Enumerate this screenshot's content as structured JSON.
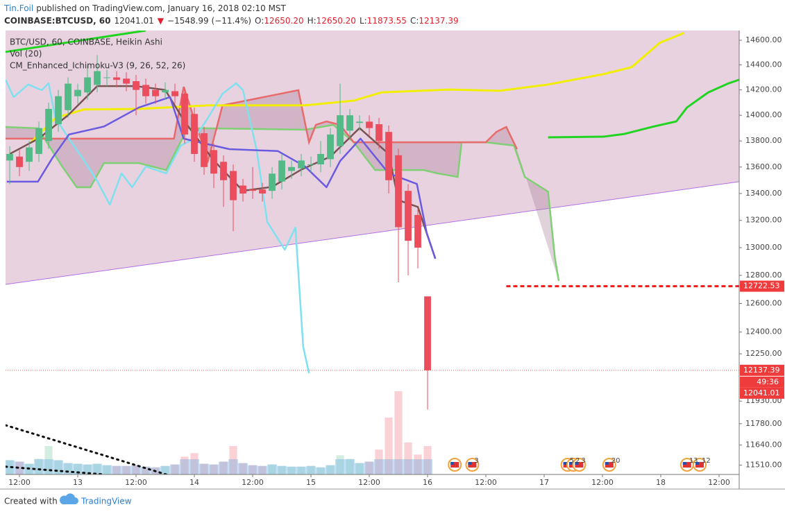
{
  "chart_data": {
    "type": "candlestick",
    "author": "Tin.Foil",
    "title": "published on TradingView.com, January 16, 2018 02:10 MST",
    "quote": [
      "COINBASE:BTCUSD, 60",
      "12041.01",
      "▼",
      "−1548.99 (−11.4%)",
      "O:",
      "12650.20",
      "H:",
      "12650.20",
      "L:",
      "11873.55",
      "C:",
      "12137.39"
    ],
    "legend": [
      "BTC/USD, 60, COINBASE, Heikin Ashi",
      "Vol (20)",
      "CM_Enhanced_Ichimoku-V3 (9, 26, 52, 26)"
    ],
    "log": true,
    "xlim": [
      -0.43,
      75.07
    ],
    "ylim": [
      11450,
      14680
    ],
    "yticks": [
      {
        "value": 14600,
        "label": "14600.00"
      },
      {
        "value": 14400,
        "label": "14400.00"
      },
      {
        "value": 14200,
        "label": "14200.00"
      },
      {
        "value": 14000,
        "label": "14000.00"
      },
      {
        "value": 13800,
        "label": "13800.00"
      },
      {
        "value": 13600,
        "label": "13600.00"
      },
      {
        "value": 13400,
        "label": "13400.00"
      },
      {
        "value": 13200,
        "label": "13200.00"
      },
      {
        "value": 13000,
        "label": "13000.00"
      },
      {
        "value": 12800,
        "label": "12800.00"
      },
      {
        "value": 12600,
        "label": "12600.00"
      },
      {
        "value": 12400,
        "label": "12400.00"
      },
      {
        "value": 12250,
        "label": "12250.00"
      },
      {
        "value": 11930,
        "label": "11930.00"
      },
      {
        "value": 11780,
        "label": "11780.00"
      },
      {
        "value": 11640,
        "label": "11640.00"
      },
      {
        "value": 11510,
        "label": "11510.00"
      }
    ],
    "xticks": [
      {
        "value": 1,
        "label": "12:00"
      },
      {
        "value": 7,
        "label": "13"
      },
      {
        "value": 13,
        "label": "12:00"
      },
      {
        "value": 19,
        "label": "14"
      },
      {
        "value": 25,
        "label": "12:00"
      },
      {
        "value": 31,
        "label": "15"
      },
      {
        "value": 37,
        "label": "12:00"
      },
      {
        "value": 43,
        "label": "16"
      },
      {
        "value": 49,
        "label": "12:00"
      },
      {
        "value": 55,
        "label": "17"
      },
      {
        "value": 61,
        "label": "12:00"
      },
      {
        "value": 67,
        "label": "18"
      },
      {
        "value": 73,
        "label": "12:00"
      }
    ],
    "up_color": "#53b987",
    "down_color": "#eb4d5c",
    "x": [
      0,
      1,
      2,
      3,
      4,
      5,
      6,
      7,
      8,
      9,
      10,
      11,
      12,
      13,
      14,
      15,
      16,
      17,
      18,
      19,
      20,
      21,
      22,
      23,
      24,
      25,
      26,
      27,
      28,
      29,
      30,
      31,
      32,
      33,
      34,
      35,
      36,
      37,
      38,
      39,
      40,
      41,
      42,
      43
    ],
    "open": [
      13650,
      13680,
      13640,
      13700,
      13800,
      13930,
      14040,
      14150,
      14180,
      14240,
      14300,
      14300,
      14290,
      14270,
      14240,
      14200,
      14180,
      14190,
      14170,
      14010,
      13860,
      13730,
      13640,
      13570,
      13460,
      13430,
      13430,
      13420,
      13490,
      13570,
      13590,
      13620,
      13620,
      13660,
      13760,
      13880,
      13940,
      13950,
      13930,
      13870,
      13690,
      13420,
      13240,
      12650.2
    ],
    "high": [
      13760,
      13730,
      13800,
      13950,
      14100,
      14200,
      14300,
      14250,
      14400,
      14480,
      14360,
      14350,
      14340,
      14320,
      14290,
      14250,
      14260,
      14250,
      14220,
      14060,
      13910,
      13780,
      13690,
      13620,
      13510,
      13600,
      13480,
      13600,
      13700,
      13650,
      13700,
      13680,
      13800,
      13900,
      14250,
      14050,
      14000,
      14000,
      13980,
      13920,
      13740,
      13470,
      13290,
      12650.2
    ],
    "low": [
      13470,
      13530,
      13570,
      13640,
      13740,
      13870,
      13980,
      14090,
      14120,
      14180,
      14230,
      14220,
      14190,
      14000,
      14090,
      14090,
      14120,
      14090,
      13780,
      13640,
      13540,
      13440,
      13300,
      13120,
      13340,
      13360,
      13340,
      13360,
      13430,
      13510,
      13530,
      13560,
      13560,
      13600,
      13700,
      13820,
      13880,
      13840,
      13740,
      13400,
      12750,
      12800,
      12850,
      11873.55
    ],
    "close": [
      13700,
      13600,
      13750,
      13900,
      14050,
      14150,
      14250,
      14200,
      14300,
      14350,
      14300,
      14280,
      14250,
      14200,
      14150,
      14150,
      14200,
      14150,
      13850,
      13700,
      13600,
      13550,
      13500,
      13350,
      13400,
      13420,
      13400,
      13550,
      13650,
      13600,
      13650,
      13620,
      13700,
      13850,
      14000,
      14000,
      13950,
      13900,
      13800,
      13500,
      13150,
      13050,
      13000,
      12137.39
    ],
    "volume": [
      2000,
      1800,
      1500,
      2200,
      4000,
      2000,
      1600,
      1500,
      1400,
      1500,
      1300,
      1200,
      1200,
      1300,
      1100,
      1000,
      1200,
      1400,
      2500,
      3000,
      1500,
      1400,
      1800,
      4000,
      1600,
      1300,
      1200,
      1400,
      1200,
      1100,
      1100,
      1200,
      1000,
      1300,
      2700,
      2200,
      1600,
      1800,
      3500,
      8000,
      11700,
      4500,
      2800,
      4000
    ],
    "channel": {
      "color": "#b070e8",
      "fill": "#e9d2e0",
      "x": [
        -0.43,
        75.07
      ],
      "values": [
        12735,
        13489
      ]
    },
    "cloud": {
      "fill": "#a77f94",
      "span_a": {
        "color": "#7fd074",
        "x": [
          -0.43,
          2.9,
          5.4,
          6.9,
          8.3,
          9.7,
          13.3,
          16.1,
          18.3,
          20.4,
          30.4,
          33.3,
          35.4,
          37.6,
          39.7,
          42.6,
          44,
          46.1,
          46.5,
          49,
          51.9,
          53,
          55.4,
          56.1,
          56.5
        ],
        "values": [
          13909,
          13898,
          13604,
          13447,
          13447,
          13630,
          13630,
          13577,
          13898,
          13898,
          13887,
          13925,
          13790,
          13577,
          13577,
          13577,
          13552,
          13525,
          13790,
          13790,
          13764,
          13525,
          13414,
          12929,
          12760
        ]
      },
      "span_b": {
        "color": "#e86a6a",
        "x": [
          -0.43,
          16.9,
          17.9,
          20.4,
          21.9,
          29.7,
          30.8,
          31.5,
          32.6,
          34,
          35.4,
          39,
          49,
          50.1,
          51.1,
          52.2
        ],
        "values": [
          13818,
          13818,
          14225,
          13646,
          14078,
          14198,
          13790,
          13925,
          13952,
          13925,
          13790,
          13790,
          13790,
          13871,
          13909,
          13737
        ]
      }
    },
    "lines": [
      {
        "color": "#f2ee00",
        "width": 3,
        "x": [
          2.2,
          4.7,
          7.6,
          13.3,
          20.4,
          30.4,
          35.4,
          38.3,
          45.4,
          50.4,
          55.4,
          61.1,
          64,
          66.9,
          69.4
        ],
        "values": [
          13790,
          13979,
          14045,
          14050,
          14078,
          14078,
          14115,
          14181,
          14203,
          14193,
          14243,
          14326,
          14382,
          14580,
          14660
        ]
      },
      {
        "color": "#22d422",
        "width": 3,
        "x": [
          -0.43,
          14
        ],
        "values": [
          14505,
          14680
        ]
      },
      {
        "color": "#22d422",
        "width": 3,
        "x": [
          55.4,
          61.1,
          63.3,
          66.1,
          68.6,
          69.7,
          71.9,
          74,
          75.07
        ],
        "values": [
          13828,
          13833,
          13855,
          13909,
          13952,
          14061,
          14181,
          14253,
          14281
        ]
      },
      {
        "color": "#7fe0ef",
        "width": 2.5,
        "x": [
          -0.43,
          0.4,
          1.9,
          3.3,
          4,
          4.7,
          6.1,
          7.6,
          9,
          10.3,
          11.5,
          12.6,
          14,
          16.1,
          17.6,
          19,
          20.4,
          21.9,
          23.3,
          24,
          25.4,
          26.5,
          28.3,
          29.4,
          30.2,
          30.8
        ],
        "values": [
          14281,
          14143,
          14243,
          14198,
          14253,
          13979,
          13818,
          13657,
          13494,
          13316,
          13552,
          13447,
          13604,
          13552,
          13764,
          13818,
          13979,
          14170,
          14253,
          14198,
          13737,
          13189,
          12985,
          13147,
          12300,
          12117
        ]
      },
      {
        "color": "#7a5252",
        "width": 2.5,
        "x": [
          0,
          3,
          6,
          9,
          13,
          16,
          18,
          21,
          24,
          27,
          30,
          33,
          36,
          39,
          40,
          42,
          43.8
        ],
        "values": [
          13700,
          13820,
          14000,
          14230,
          14230,
          14200,
          13950,
          13650,
          13420,
          13450,
          13580,
          13680,
          13900,
          13700,
          13350,
          13300,
          12920
        ]
      },
      {
        "color": "#6a5ae0",
        "width": 2.5,
        "x": [
          -0.3,
          2.9,
          4.4,
          6.1,
          9.7,
          13.3,
          16.5,
          17.9,
          22.6,
          27.6,
          30.4,
          32.6,
          34,
          36.1,
          39,
          41.9,
          42.9,
          43.8
        ],
        "values": [
          13489,
          13489,
          13670,
          13850,
          13912,
          14061,
          14143,
          13818,
          13737,
          13722,
          13604,
          13447,
          13646,
          13818,
          13552,
          13472,
          13111,
          12920
        ]
      }
    ],
    "dotted": [
      {
        "color": "#111111",
        "x": [
          -0.43,
          16.1
        ],
        "values": [
          11770,
          11450
        ]
      },
      {
        "color": "#111111",
        "x": [
          -0.43,
          9.7
        ],
        "values": [
          11500,
          11450
        ]
      }
    ],
    "hline": {
      "value": 12722.53,
      "from": 51.1,
      "color": "#ee1c1c"
    },
    "price_labels": [
      {
        "value": 12722.53,
        "label": "12722.53"
      },
      {
        "value": 12137.39,
        "label": "12137.39"
      },
      {
        "value": 12041.01,
        "label": "12041.01"
      }
    ],
    "countdown": "49:36",
    "events": [
      {
        "x": 45.8
      },
      {
        "x": 47.6,
        "label": "3"
      },
      {
        "x": 57.4,
        "label": "5"
      },
      {
        "x": 58.0,
        "label": "2"
      },
      {
        "x": 58.6,
        "label": "3"
      },
      {
        "x": 61.7,
        "label": "20"
      },
      {
        "x": 69.7,
        "label": "13"
      },
      {
        "x": 71.0,
        "label": "12"
      }
    ],
    "footer": [
      "Created with",
      "TradingView"
    ]
  }
}
